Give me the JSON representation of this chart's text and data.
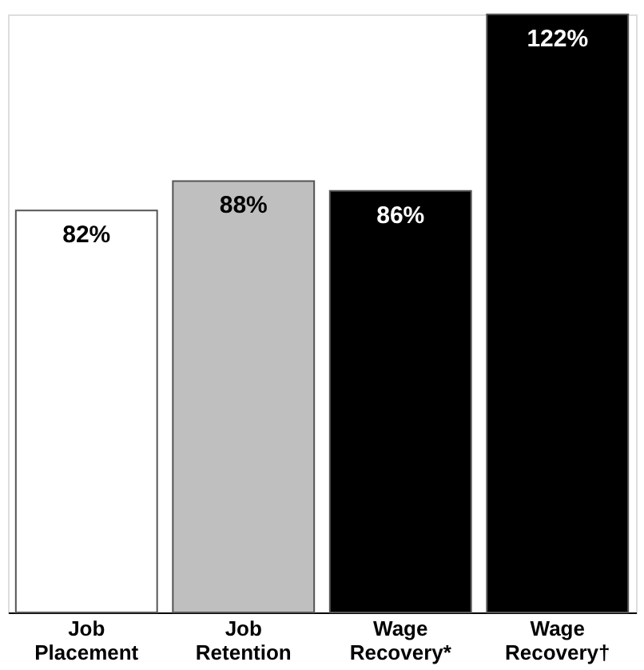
{
  "chart_data": {
    "type": "bar",
    "categories": [
      "Job Placement",
      "Job Retention",
      "Wage Recovery*",
      "Wage Recovery†"
    ],
    "values": [
      82,
      88,
      86,
      122
    ],
    "colors": [
      "#ffffff",
      "#bfbfbf",
      "#000000",
      "#000000"
    ],
    "value_labels": [
      "82%",
      "88%",
      "86%",
      "122%"
    ]
  }
}
